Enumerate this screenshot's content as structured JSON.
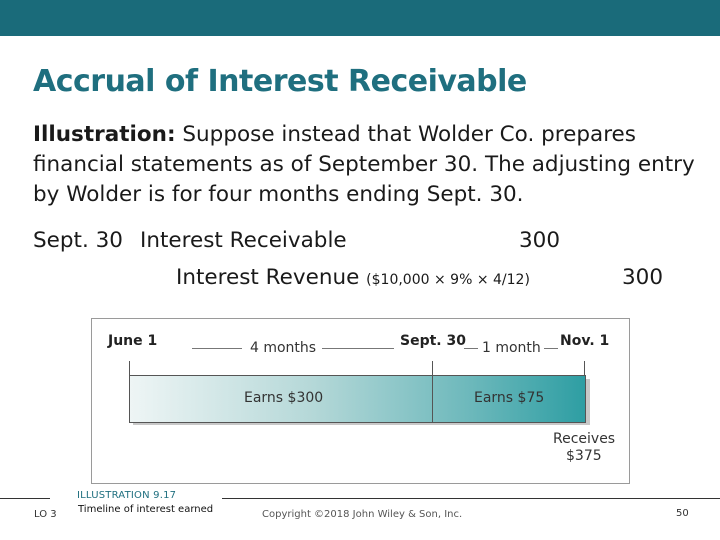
{
  "slide": {
    "title": "Accrual of Interest Receivable",
    "illustration_label": "Illustration:",
    "illustration_text": " Suppose instead that Wolder Co. prepares financial statements as of September 30. The adjusting entry by Wolder is for four months ending Sept. 30."
  },
  "entry": {
    "date": "Sept. 30",
    "debit_account": "Interest Receivable",
    "debit_amount": "300",
    "credit_account": "Interest Revenue",
    "credit_calc": "($10,000 × 9% × 4/12)",
    "credit_amount": "300"
  },
  "timeline": {
    "start_label": "June 1",
    "mid_label": "Sept. 30",
    "end_label": "Nov. 1",
    "period1_label": "4 months",
    "period2_label": "1 month",
    "earn1_label": "Earns $300",
    "earn2_label": "Earns $75",
    "receives_label": "Receives",
    "receives_amount": "$375"
  },
  "footer": {
    "lo": "LO 3",
    "illustration_number": "ILLUSTRATION 9.17",
    "illustration_caption": "Timeline of interest earned",
    "copyright": "Copyright ©2018 John Wiley & Son, Inc.",
    "page_number": "50"
  },
  "colors": {
    "banner": "#1a6b7a",
    "title": "#1f6f7f"
  }
}
